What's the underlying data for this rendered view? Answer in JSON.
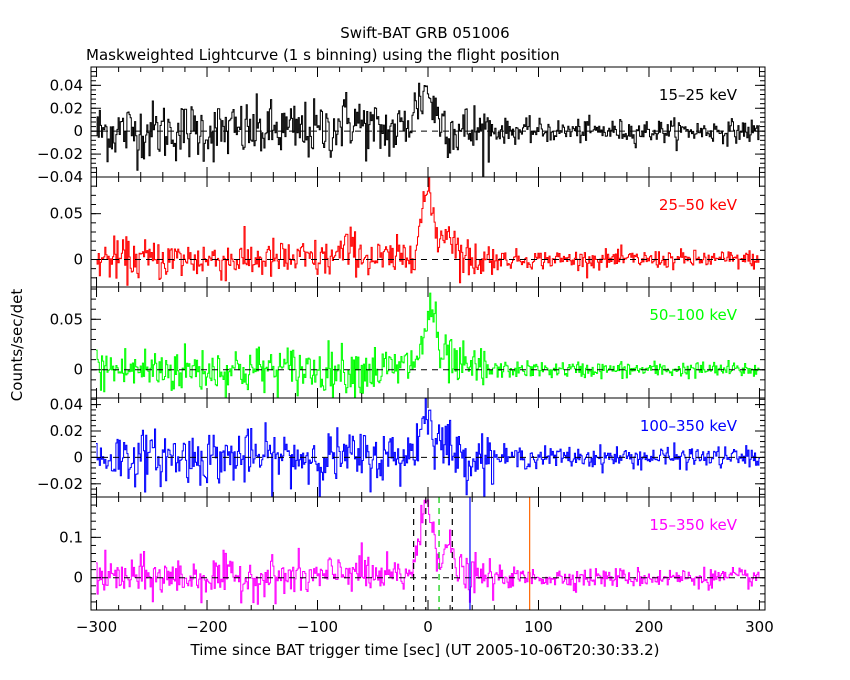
{
  "chart_data": {
    "type": "line",
    "title": "Swift-BAT GRB 051006",
    "subtitle": "Maskweighted Lightcurve (1 s binning) using the flight position",
    "xlabel": "Time since BAT trigger time [sec] (UT 2005-10-06T20:30:33.2)",
    "ylabel": "Counts/sec/det",
    "xlim": [
      -305,
      305
    ],
    "xticks": [
      -300,
      -200,
      -100,
      0,
      100,
      200,
      300
    ],
    "xtick_labels": [
      "−300",
      "−200",
      "−100",
      "0",
      "100",
      "200",
      "300"
    ],
    "panels": [
      {
        "name": "15–25 keV",
        "color": "#000000",
        "ylim": [
          -0.04,
          0.056
        ],
        "yticks": [
          -0.04,
          -0.02,
          0,
          0.02,
          0.04
        ],
        "ytick_labels": [
          "−0.04",
          "−0.02",
          "0",
          "0.02",
          "0.04"
        ],
        "pre_noise": 0.013,
        "post_noise": 0.005,
        "pulses": [
          [
            -5,
            0.028,
            8
          ],
          [
            0,
            0.012,
            3
          ],
          [
            -70,
            0.01,
            10
          ],
          [
            12,
            0.008,
            6
          ]
        ]
      },
      {
        "name": "25–50 keV",
        "color": "#ff0000",
        "ylim": [
          -0.03,
          0.09
        ],
        "yticks": [
          0,
          0.05
        ],
        "ytick_labels": [
          "0",
          "0.05"
        ],
        "pre_noise": 0.011,
        "post_noise": 0.005,
        "pulses": [
          [
            0,
            0.055,
            5
          ],
          [
            -5,
            0.02,
            8
          ],
          [
            18,
            0.032,
            6
          ],
          [
            -70,
            0.012,
            8
          ]
        ]
      },
      {
        "name": "50–100 keV",
        "color": "#00ff00",
        "ylim": [
          -0.028,
          0.082
        ],
        "yticks": [
          0,
          0.05
        ],
        "ytick_labels": [
          "0",
          "0.05"
        ],
        "pre_noise": 0.012,
        "post_noise": 0.004,
        "pulses": [
          [
            3,
            0.055,
            4
          ],
          [
            -5,
            0.015,
            8
          ],
          [
            18,
            0.01,
            5
          ]
        ]
      },
      {
        "name": "100–350 keV",
        "color": "#0000ff",
        "ylim": [
          -0.03,
          0.045
        ],
        "yticks": [
          -0.02,
          0,
          0.02,
          0.04
        ],
        "ytick_labels": [
          "−0.02",
          "0",
          "0.02",
          "0.04"
        ],
        "pre_noise": 0.01,
        "post_noise": 0.004,
        "pulses": [
          [
            0,
            0.025,
            5
          ],
          [
            -5,
            0.01,
            8
          ],
          [
            15,
            0.01,
            6
          ]
        ]
      },
      {
        "name": "15–350 keV",
        "color": "#ff00ff",
        "ylim": [
          -0.08,
          0.2
        ],
        "yticks": [
          0,
          0.1
        ],
        "ytick_labels": [
          "0",
          "0.1"
        ],
        "pre_noise": 0.025,
        "post_noise": 0.012,
        "pulses": [
          [
            0,
            0.15,
            5
          ],
          [
            -5,
            0.05,
            8
          ],
          [
            18,
            0.07,
            6
          ],
          [
            -70,
            0.02,
            10
          ]
        ],
        "markers": [
          {
            "x": -13,
            "color": "#000000",
            "style": "dashed"
          },
          {
            "x": -2,
            "color": "#000000",
            "style": "dashed"
          },
          {
            "x": 22,
            "color": "#000000",
            "style": "dashed"
          },
          {
            "x": 10,
            "color": "#00cc00",
            "style": "dashed"
          },
          {
            "x": 38,
            "color": "#0000ff",
            "style": "solid"
          },
          {
            "x": 92,
            "color": "#ff6600",
            "style": "solid"
          }
        ]
      }
    ],
    "t_range": [
      -300,
      300
    ],
    "post_burst_start": 60,
    "grid": false,
    "legend": "top-right in each panel"
  }
}
